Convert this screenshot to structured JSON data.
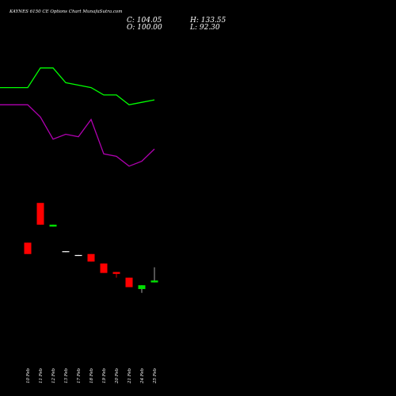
{
  "header": {
    "title": "KAYNES 6150  CE Options  Chart MunafaSutra.com",
    "close_label": "C: 104.05",
    "open_label": "O: 100.00",
    "high_label": "H: 133.55",
    "low_label": "L: 92.30"
  },
  "colors": {
    "background": "#000000",
    "up_candle": "#00e000",
    "down_candle": "#ff0000",
    "flat_candle": "#ffffff",
    "upper_line": "#00ff00",
    "lower_line": "#b000b0",
    "text": "#ffffff"
  },
  "chart_data": {
    "type": "candlestick",
    "title": "KAYNES 6150  CE Options  Chart MunafaSutra.com",
    "xlabel": "",
    "ylabel": "",
    "grid": false,
    "categories": [
      "10 Feb",
      "11 Feb",
      "12 Feb",
      "13 Feb",
      "17 Feb",
      "18 Feb",
      "19 Feb",
      "20 Feb",
      "21 Feb",
      "24 Feb",
      "25 Feb"
    ],
    "price_axis": {
      "ylim": [
        65,
        250
      ]
    },
    "candles": [
      {
        "date": "10 Feb",
        "open": 176,
        "high": 176,
        "low": 164,
        "close": 164,
        "color": "red"
      },
      {
        "date": "11 Feb",
        "open": 218,
        "high": 218,
        "low": 195,
        "close": 195,
        "color": "red"
      },
      {
        "date": "12 Feb",
        "open": 193,
        "high": 195,
        "low": 193,
        "close": 195,
        "color": "green"
      },
      {
        "date": "13 Feb",
        "open": 167,
        "high": 167,
        "low": 166,
        "close": 166,
        "color": "white"
      },
      {
        "date": "17 Feb",
        "open": 163,
        "high": 163,
        "low": 162,
        "close": 162,
        "color": "white"
      },
      {
        "date": "18 Feb",
        "open": 164,
        "high": 164,
        "low": 156,
        "close": 156,
        "color": "red"
      },
      {
        "date": "19 Feb",
        "open": 154,
        "high": 154,
        "low": 144,
        "close": 144,
        "color": "red"
      },
      {
        "date": "20 Feb",
        "open": 145,
        "high": 145,
        "low": 139,
        "close": 143,
        "color": "red"
      },
      {
        "date": "21 Feb",
        "open": 139,
        "high": 139,
        "low": 129,
        "close": 129,
        "color": "red"
      },
      {
        "date": "24 Feb",
        "open": 127,
        "high": 131,
        "low": 123,
        "close": 131,
        "color": "green"
      },
      {
        "date": "25 Feb",
        "open": 134,
        "high": 150,
        "low": 134,
        "close": 136,
        "color": "green"
      }
    ],
    "line_axis": {
      "ylim": [
        0,
        100
      ]
    },
    "series": [
      {
        "key": "upper",
        "color": "#00ff00",
        "values": [
          74,
          82,
          82,
          76,
          75,
          74,
          71,
          71,
          67,
          68,
          69
        ]
      },
      {
        "key": "lower",
        "color": "#b000b0",
        "values": [
          67,
          62,
          53,
          55,
          54,
          61,
          47,
          46,
          42,
          44,
          49
        ]
      }
    ]
  }
}
